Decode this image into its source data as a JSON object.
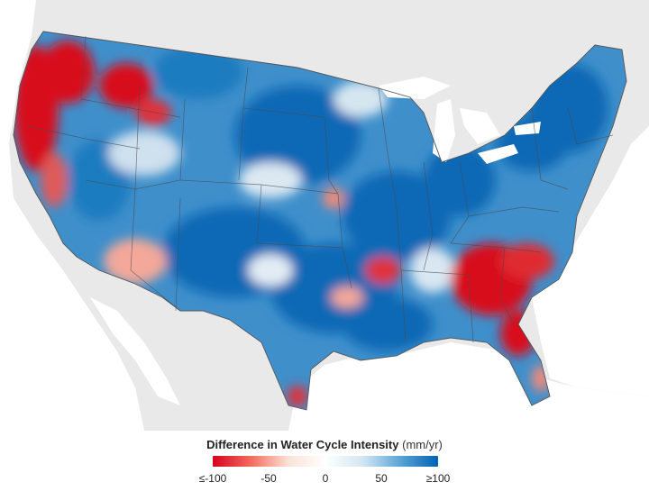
{
  "legend": {
    "title": "Difference in Water Cycle Intensity",
    "unit": "(mm/yr)",
    "ticks": [
      "≤-100",
      "-50",
      "0",
      "50",
      "≥100"
    ],
    "color_stops": [
      "#d7001f",
      "#f26a5a",
      "#fbe1d6",
      "#ffffff",
      "#d3e6f3",
      "#5aa4d6",
      "#0062b3"
    ]
  },
  "map": {
    "region": "conterminous United States",
    "colors": {
      "land": "#e8e8e8",
      "water": "#ffffff",
      "positive": "#0a69b5",
      "negative": "#d8101f",
      "borders": "#555555"
    }
  }
}
